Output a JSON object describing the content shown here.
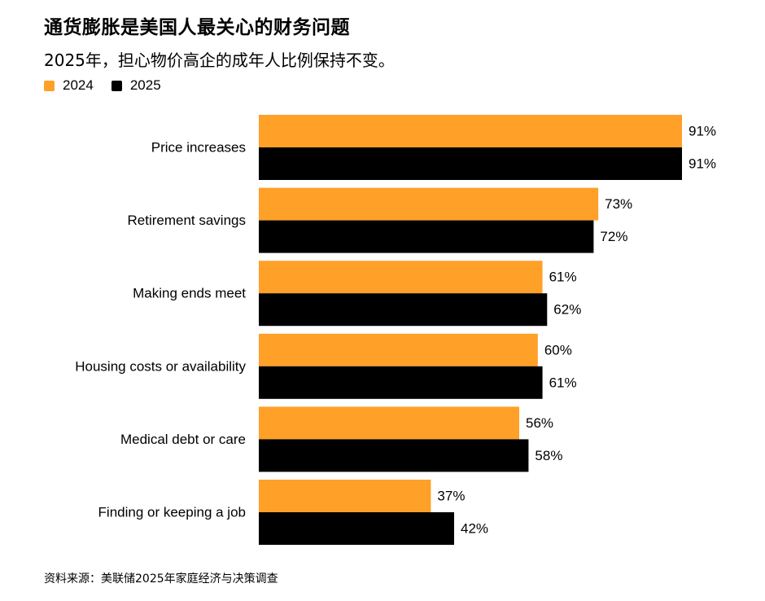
{
  "title": "通货膨胀是美国人最关心的财务问题",
  "subtitle": "2025年，担心物价高企的成年人比例保持不变。",
  "source": "资料来源：美联储2025年家庭经济与决策调查",
  "colors": {
    "series_2024": "#FFA028",
    "series_2025": "#000000"
  },
  "chart_data": {
    "type": "bar",
    "orientation": "horizontal",
    "categories": [
      "Price increases",
      "Retirement savings",
      "Making ends meet",
      "Housing costs or availability",
      "Medical debt or care",
      "Finding or keeping a job"
    ],
    "series": [
      {
        "name": "2024",
        "values": [
          91,
          73,
          61,
          60,
          56,
          37
        ],
        "labels": [
          "91%",
          "73%",
          "61%",
          "60%",
          "56%",
          "37%"
        ]
      },
      {
        "name": "2025",
        "values": [
          91,
          72,
          62,
          61,
          58,
          42
        ],
        "labels": [
          "91%",
          "72%",
          "62%",
          "61%",
          "58%",
          "42%"
        ]
      }
    ],
    "xlim": [
      0,
      91
    ],
    "legend": "top-left",
    "grid": false
  }
}
